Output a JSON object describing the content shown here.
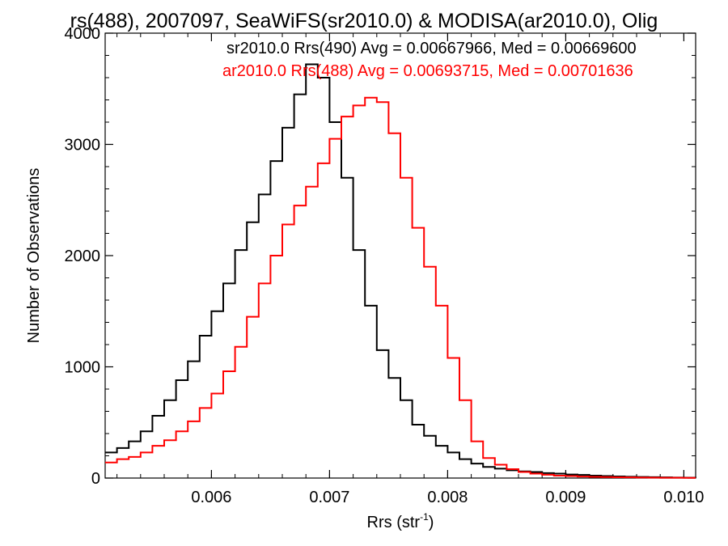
{
  "chart_data": {
    "type": "histogram",
    "title": "rs(488), 2007097, SeaWiFS(sr2010.0) & MODISA(ar2010.0), Olig",
    "xlabel_main": "Rrs (str",
    "xlabel_sup": "-1",
    "xlabel_end": ")",
    "ylabel": "Number of Observations",
    "xlim": [
      0.0051,
      0.0101
    ],
    "ylim": [
      0,
      4000
    ],
    "x_ticks": [
      {
        "value": 0.006,
        "label": "0.006"
      },
      {
        "value": 0.007,
        "label": "0.007"
      },
      {
        "value": 0.008,
        "label": "0.008"
      },
      {
        "value": 0.009,
        "label": "0.009"
      },
      {
        "value": 0.01,
        "label": "0.010"
      }
    ],
    "y_ticks": [
      {
        "value": 0,
        "label": "0"
      },
      {
        "value": 1000,
        "label": "1000"
      },
      {
        "value": 2000,
        "label": "2000"
      },
      {
        "value": 3000,
        "label": "3000"
      },
      {
        "value": 4000,
        "label": "4000"
      }
    ],
    "series": [
      {
        "name": "sr2010.0",
        "legend": "sr2010.0 Rrs(490) Avg = 0.00667966, Med = 0.00669600",
        "color": "#000000",
        "x": [
          0.0051,
          0.0052,
          0.0053,
          0.0054,
          0.0055,
          0.0056,
          0.0057,
          0.0058,
          0.0059,
          0.006,
          0.0061,
          0.0062,
          0.0063,
          0.0064,
          0.0065,
          0.0066,
          0.0067,
          0.0068,
          0.0069,
          0.007,
          0.0071,
          0.0072,
          0.0073,
          0.0074,
          0.0075,
          0.0076,
          0.0077,
          0.0078,
          0.0079,
          0.008,
          0.0081,
          0.0082,
          0.0083,
          0.0084,
          0.0085,
          0.0086,
          0.0087,
          0.0088,
          0.0089,
          0.009,
          0.0091,
          0.0092,
          0.0093,
          0.0094,
          0.0095,
          0.0096,
          0.0097,
          0.0098,
          0.0099,
          0.01,
          0.0101
        ],
        "y": [
          230,
          270,
          330,
          420,
          560,
          700,
          880,
          1050,
          1280,
          1500,
          1750,
          2050,
          2300,
          2550,
          2850,
          3150,
          3450,
          3720,
          3600,
          3200,
          2700,
          2050,
          1550,
          1150,
          900,
          700,
          480,
          380,
          290,
          230,
          170,
          130,
          100,
          85,
          70,
          60,
          55,
          45,
          40,
          32,
          28,
          22,
          18,
          15,
          12,
          10,
          8,
          6,
          5,
          4,
          3
        ]
      },
      {
        "name": "ar2010.0",
        "legend": "ar2010.0 Rrs(488) Avg = 0.00693715, Med = 0.00701636",
        "color": "#ff0000",
        "x": [
          0.0051,
          0.0052,
          0.0053,
          0.0054,
          0.0055,
          0.0056,
          0.0057,
          0.0058,
          0.0059,
          0.006,
          0.0061,
          0.0062,
          0.0063,
          0.0064,
          0.0065,
          0.0066,
          0.0067,
          0.0068,
          0.0069,
          0.007,
          0.0071,
          0.0072,
          0.0073,
          0.0074,
          0.0075,
          0.0076,
          0.0077,
          0.0078,
          0.0079,
          0.008,
          0.0081,
          0.0082,
          0.0083,
          0.0084,
          0.0085,
          0.0086,
          0.0087,
          0.0088,
          0.0089,
          0.009,
          0.0091,
          0.0092,
          0.0093,
          0.0094,
          0.0095,
          0.0096,
          0.0097,
          0.0098,
          0.0099,
          0.01,
          0.0101
        ],
        "y": [
          140,
          170,
          190,
          230,
          290,
          340,
          420,
          510,
          630,
          760,
          960,
          1180,
          1450,
          1750,
          2000,
          2280,
          2450,
          2620,
          2830,
          3050,
          3250,
          3350,
          3420,
          3380,
          3100,
          2700,
          2250,
          1900,
          1550,
          1080,
          700,
          330,
          180,
          120,
          80,
          55,
          40,
          30,
          22,
          18,
          14,
          11,
          9,
          7,
          6,
          5,
          4,
          3,
          3,
          2,
          2
        ]
      }
    ]
  }
}
